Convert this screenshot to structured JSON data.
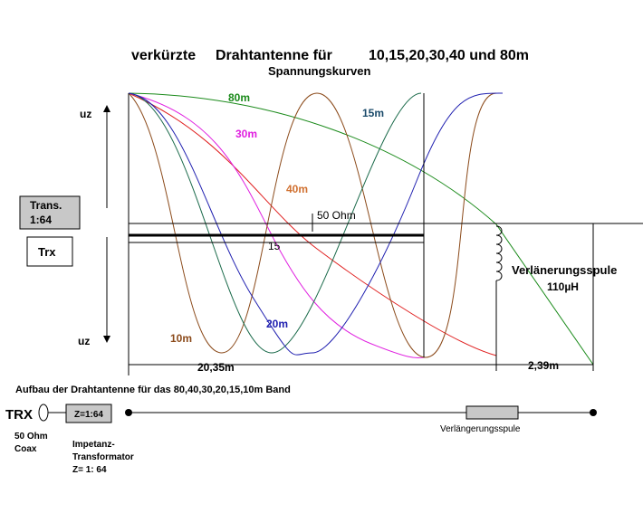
{
  "title": {
    "part1": "verkürzte",
    "part2": "Drahtantenne für",
    "part3": "10,15,20,30,40 und 80m",
    "subtitle": "Spannungskurven"
  },
  "axis": {
    "top": "uz",
    "bottom": "uz"
  },
  "curves": {
    "c80": "80m",
    "c15": "15m",
    "c30": "30m",
    "c40": "40m",
    "c10": "10m",
    "c20": "20m"
  },
  "boxes": {
    "trans1": "Trans.",
    "trans2": "1:64",
    "trx": "Trx"
  },
  "antenna": {
    "ohm": "50 Ohm",
    "len": "15",
    "coil": "Verlänerungsspule",
    "coilval": "110µH",
    "dim1": "20,35m",
    "dim2": "2,39m"
  },
  "bottom": {
    "caption": "Aufbau der Drahtantenne für das 80,40,30,20,15,10m Band",
    "trx": "TRX",
    "z": "Z=1:64",
    "coil": "Verlängerungsspule",
    "coax1": "50 Ohm",
    "coax2": "Coax",
    "imp1": "Impetanz-",
    "imp2": "Transformator",
    "imp3": "Z= 1: 64"
  }
}
